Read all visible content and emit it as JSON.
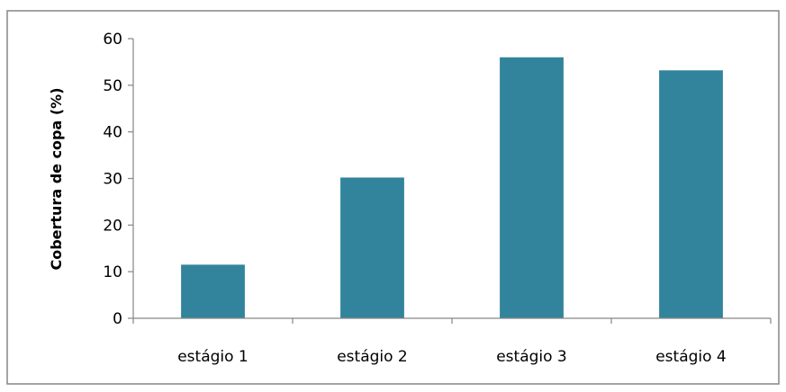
{
  "chart_data": {
    "type": "bar",
    "title": "",
    "xlabel": "",
    "ylabel": "Cobertura de copa (%)",
    "categories": [
      "estágio 1",
      "estágio 2",
      "estágio 3",
      "estágio 4"
    ],
    "values": [
      11.5,
      30.2,
      56.0,
      53.2
    ],
    "ylim": [
      0,
      60
    ],
    "yticks": [
      "0",
      "10",
      "20",
      "30",
      "40",
      "50",
      "60"
    ],
    "grid": false,
    "legend": "none",
    "bar_color": "#31849B",
    "axis_color": "#868686",
    "frame_color": "#868686"
  }
}
